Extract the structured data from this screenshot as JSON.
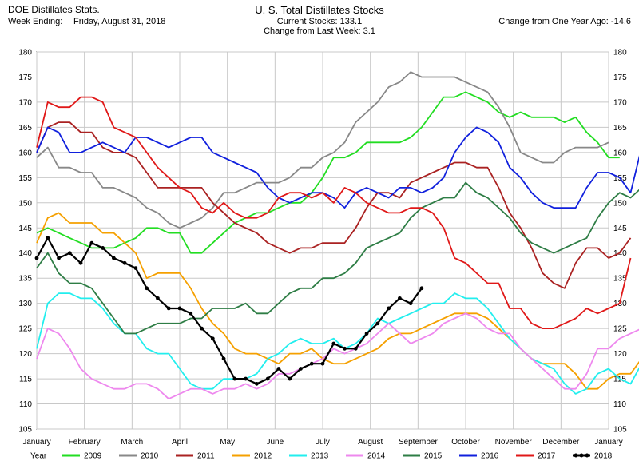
{
  "header": {
    "left_title": "DOE Distillates Stats.",
    "week_label": "Week Ending:",
    "week_date": "Friday, August 31, 2018",
    "title": "U. S. Total Distillates Stocks",
    "current_stocks": "Current Stocks: 133.1",
    "change_week": "Change from Last Week:   3.1",
    "change_year": "Change from One Year Ago: -14.6"
  },
  "chart_data": {
    "type": "line",
    "title": "U. S. Total Distillates Stocks",
    "xlabel": "",
    "ylabel": "",
    "ylim": [
      105,
      180
    ],
    "y_ticks": [
      105,
      110,
      115,
      120,
      125,
      130,
      135,
      140,
      145,
      150,
      155,
      160,
      165,
      170,
      175,
      180
    ],
    "x_ticks": [
      "January",
      "February",
      "March",
      "April",
      "May",
      "June",
      "July",
      "August",
      "September",
      "October",
      "November",
      "December",
      "January"
    ],
    "grid": true,
    "legend_position": "bottom",
    "legend_title": "Year",
    "series": [
      {
        "name": "2009",
        "color": "#22dd22",
        "values": [
          144,
          145,
          144,
          143,
          142,
          141,
          141,
          141,
          142,
          143,
          145,
          145,
          144,
          144,
          140,
          140,
          142,
          144,
          146,
          147,
          148,
          148,
          149,
          150,
          150,
          152,
          155,
          159,
          159,
          160,
          162,
          162,
          162,
          162,
          163,
          165,
          168,
          171,
          171,
          172,
          171,
          170,
          168,
          167,
          168,
          167,
          167,
          167,
          166,
          167,
          164,
          162,
          159,
          159
        ]
      },
      {
        "name": "2010",
        "color": "#888888",
        "values": [
          159,
          161,
          157,
          157,
          156,
          156,
          153,
          153,
          152,
          151,
          149,
          148,
          146,
          145,
          146,
          147,
          149,
          152,
          152,
          153,
          154,
          154,
          154,
          155,
          157,
          157,
          159,
          160,
          162,
          166,
          168,
          170,
          173,
          174,
          176,
          175,
          175,
          175,
          175,
          174,
          173,
          172,
          169,
          165,
          160,
          159,
          158,
          158,
          160,
          161,
          161,
          161,
          162
        ]
      },
      {
        "name": "2011",
        "color": "#aa2222",
        "values": [
          160,
          165,
          166,
          166,
          164,
          164,
          161,
          160,
          160,
          159,
          156,
          153,
          153,
          153,
          153,
          153,
          150,
          148,
          146,
          145,
          144,
          142,
          141,
          140,
          141,
          141,
          142,
          142,
          142,
          145,
          149,
          152,
          152,
          151,
          154,
          155,
          156,
          157,
          158,
          158,
          157,
          157,
          153,
          148,
          145,
          141,
          136,
          134,
          133,
          138,
          141,
          141,
          139,
          140,
          143
        ]
      },
      {
        "name": "2012",
        "color": "#f5a000",
        "values": [
          142,
          147,
          148,
          146,
          146,
          146,
          144,
          144,
          142,
          140,
          135,
          136,
          136,
          136,
          133,
          129,
          126,
          124,
          121,
          120,
          120,
          119,
          118,
          120,
          120,
          121,
          119,
          118,
          118,
          119,
          120,
          121,
          123,
          124,
          124,
          125,
          126,
          127,
          128,
          128,
          128,
          127,
          125,
          123,
          121,
          119,
          118,
          118,
          118,
          116,
          113,
          113,
          115,
          116,
          116,
          119,
          124
        ]
      },
      {
        "name": "2013",
        "color": "#22eeee",
        "values": [
          121,
          130,
          132,
          132,
          131,
          131,
          129,
          126,
          124,
          124,
          121,
          120,
          120,
          117,
          114,
          113,
          113,
          115,
          115,
          115,
          116,
          119,
          120,
          122,
          123,
          122,
          122,
          123,
          121,
          122,
          124,
          127,
          126,
          127,
          128,
          129,
          130,
          130,
          132,
          131,
          131,
          129,
          126,
          123,
          121,
          119,
          118,
          117,
          114,
          112,
          113,
          116,
          117,
          115,
          114,
          118
        ]
      },
      {
        "name": "2014",
        "color": "#ee88ee",
        "values": [
          119,
          125,
          124,
          121,
          117,
          115,
          114,
          113,
          113,
          114,
          114,
          113,
          111,
          112,
          113,
          113,
          112,
          113,
          113,
          114,
          113,
          114,
          116,
          116,
          117,
          118,
          119,
          121,
          120,
          121,
          122,
          124,
          126,
          124,
          122,
          123,
          124,
          126,
          127,
          128,
          127,
          125,
          124,
          124,
          121,
          119,
          117,
          115,
          113,
          113,
          116,
          121,
          121,
          123,
          124,
          125
        ]
      },
      {
        "name": "2015",
        "color": "#2e7d45",
        "values": [
          137,
          140,
          136,
          134,
          134,
          133,
          130,
          127,
          124,
          124,
          125,
          126,
          126,
          126,
          127,
          127,
          129,
          129,
          129,
          130,
          128,
          128,
          130,
          132,
          133,
          133,
          135,
          135,
          136,
          138,
          141,
          142,
          143,
          144,
          147,
          149,
          150,
          151,
          151,
          154,
          152,
          151,
          149,
          147,
          144,
          142,
          141,
          140,
          141,
          142,
          143,
          147,
          150,
          152,
          151,
          153,
          159
        ]
      },
      {
        "name": "2016",
        "color": "#1020dd",
        "values": [
          160,
          165,
          164,
          160,
          160,
          161,
          162,
          161,
          160,
          163,
          163,
          162,
          161,
          162,
          163,
          163,
          160,
          159,
          158,
          157,
          156,
          153,
          151,
          150,
          151,
          152,
          152,
          151,
          149,
          152,
          153,
          152,
          151,
          153,
          153,
          152,
          153,
          155,
          160,
          163,
          165,
          164,
          162,
          157,
          155,
          152,
          150,
          149,
          149,
          149,
          153,
          156,
          156,
          155,
          152,
          161
        ]
      },
      {
        "name": "2017",
        "color": "#e01818",
        "values": [
          161,
          170,
          169,
          169,
          171,
          171,
          170,
          165,
          164,
          163,
          160,
          157,
          155,
          153,
          152,
          149,
          148,
          150,
          148,
          147,
          147,
          148,
          151,
          152,
          152,
          151,
          152,
          150,
          153,
          152,
          150,
          149,
          148,
          148,
          149,
          149,
          148,
          145,
          139,
          138,
          136,
          134,
          134,
          129,
          129,
          126,
          125,
          125,
          126,
          127,
          129,
          128,
          129,
          130,
          139
        ]
      },
      {
        "name": "2018",
        "color": "#000000",
        "values": [
          139,
          143,
          139,
          140,
          138,
          142,
          141,
          139,
          138,
          137,
          133,
          131,
          129,
          129,
          128,
          125,
          123,
          119,
          115,
          115,
          114,
          115,
          117,
          115,
          117,
          118,
          118,
          122,
          121,
          121,
          124,
          126,
          129,
          131,
          130,
          133
        ]
      }
    ]
  }
}
